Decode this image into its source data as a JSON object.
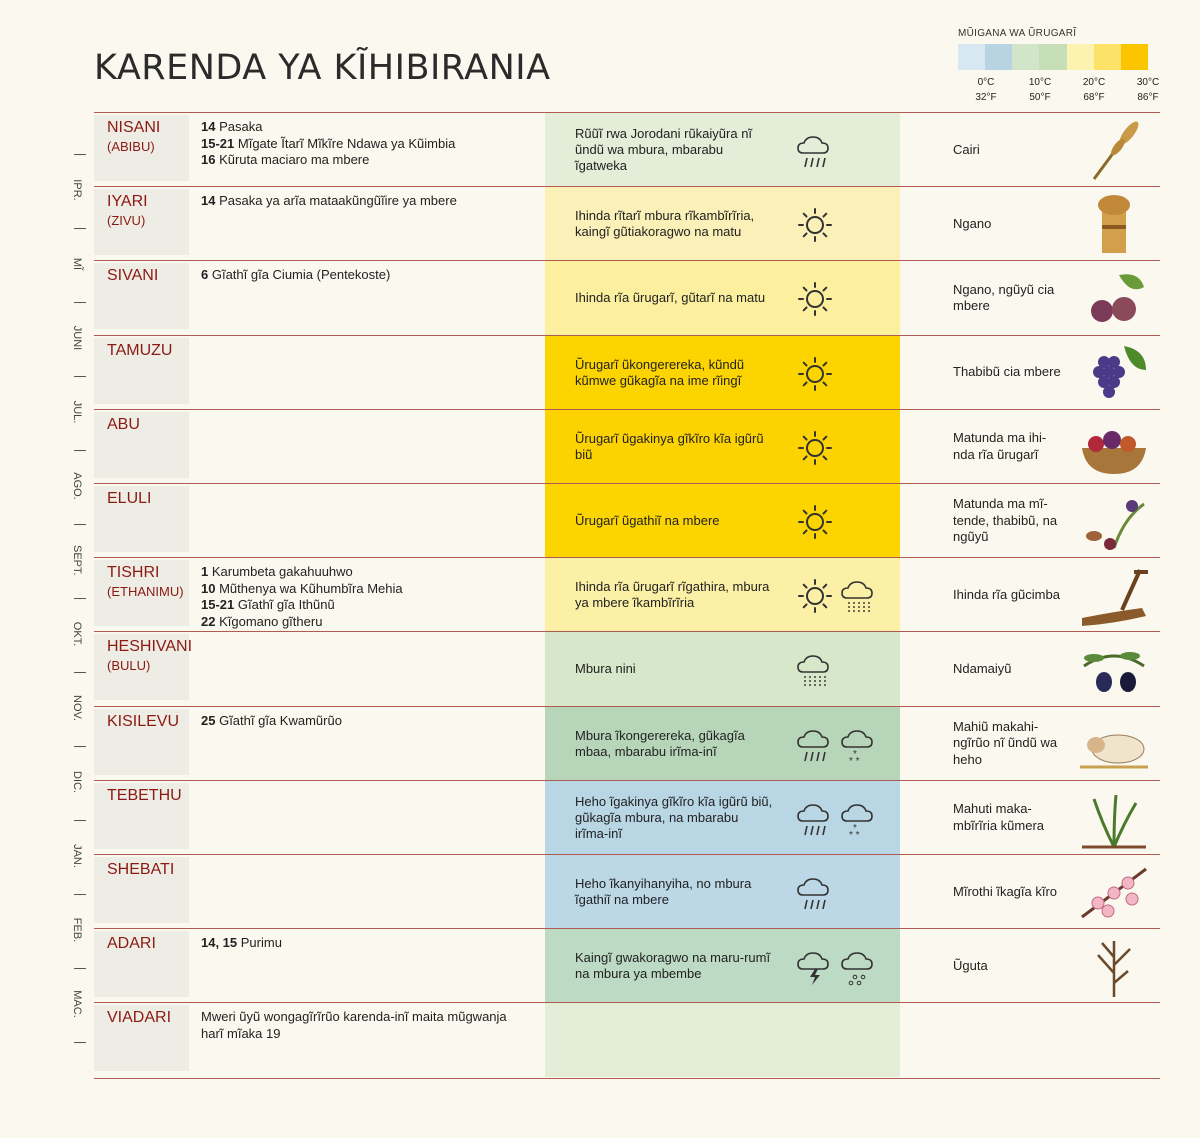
{
  "title": "KARENDA YA KĨHIBIRANIA",
  "legend": {
    "label": "MŨIGANA WA ŨRUGARĨ",
    "colors": [
      "#d8e8f2",
      "#b8d3e1",
      "#d1e6c8",
      "#c7dfb6",
      "#fdf3b0",
      "#fde269",
      "#fbc600"
    ],
    "ticks": [
      {
        "c": "0°C",
        "f": "32°F"
      },
      {
        "c": "10°C",
        "f": "50°F"
      },
      {
        "c": "20°C",
        "f": "68°F"
      },
      {
        "c": "30°C",
        "f": "86°F"
      }
    ]
  },
  "gregorian": [
    "IPR.",
    "MĨ",
    "JUNI",
    "JUL.",
    "AGO.",
    "SEPT.",
    "OKT.",
    "NOV.",
    "DIC.",
    "JAN.",
    "FEB.",
    "MAC."
  ],
  "months": [
    {
      "name": "NISANI",
      "alt": "(ABIBU)",
      "feasts": [
        {
          "d": "14",
          "t": "Pasaka"
        },
        {
          "d": "15-21",
          "t": "Mĩgate Ĩtarĩ Mĩkĩre Ndawa ya Kũimbia"
        },
        {
          "d": "16",
          "t": "Kũruta maciaro ma mbere"
        }
      ],
      "weather": "Rũũĩ rwa Jorodani rũkaiyũra nĩ ũndũ wa mbura, mbarabu ĩgatweka",
      "icons": [
        "rain-cloud"
      ],
      "bg": "#e3edd7",
      "crop": "Cairi",
      "crop_icon": "barley-icon"
    },
    {
      "name": "IYARI",
      "alt": "(ZIVU)",
      "feasts": [
        {
          "d": "14",
          "t": "Pasaka ya arĩa mataakũngũĩire ya mbere"
        }
      ],
      "weather": "Ihinda rĩtarĩ mbura rĩkambĩrĩria, kaingĩ gũtiakoragwo na matu",
      "icons": [
        "sun"
      ],
      "bg": "#fbf1b8",
      "crop": "Ngano",
      "crop_icon": "wheat-sheaf-icon"
    },
    {
      "name": "SIVANI",
      "alt": "",
      "feasts": [
        {
          "d": "6",
          "t": "Gĩathĩ gĩa Ciumia (Pentekoste)"
        }
      ],
      "weather": "Ihinda rĩa ũrugarĩ, gũtarĩ na matu",
      "icons": [
        "sun"
      ],
      "bg": "#fcef9e",
      "crop": "Ngano, ngũyũ cia mbere",
      "crop_icon": "fig-icon"
    },
    {
      "name": "TAMUZU",
      "alt": "",
      "feasts": [],
      "weather": "Ũrugarĩ ũkongerereka, kũndũ kũmwe gũkagĩa na ime rĩingĩ",
      "icons": [
        "sun"
      ],
      "bg": "#fcd500",
      "crop": "Thabibũ cia mbere",
      "crop_icon": "grapes-icon"
    },
    {
      "name": "ABU",
      "alt": "",
      "feasts": [],
      "weather": "Ũrugarĩ ũgakinya gĩkĩro kĩa igũrũ biũ",
      "icons": [
        "sun"
      ],
      "bg": "#fcd200",
      "crop": "Matunda ma ihi-nda rĩa ũrugarĩ",
      "crop_icon": "fruit-basket-icon"
    },
    {
      "name": "ELULI",
      "alt": "",
      "feasts": [],
      "weather": "Ũrugarĩ ũgathiĩ na mbere",
      "icons": [
        "sun"
      ],
      "bg": "#fcd500",
      "crop": "Matunda ma mĩ-tende, thabibũ, na ngũyũ",
      "crop_icon": "dates-icon"
    },
    {
      "name": "TISHRI",
      "alt": "(ETHANIMU)",
      "feasts": [
        {
          "d": "1",
          "t": "Karumbeta gakahuuhwo"
        },
        {
          "d": "10",
          "t": "Mũthenya wa Kũhumbĩra Mehia"
        },
        {
          "d": "15-21",
          "t": "Gĩathĩ gĩa Ithũnũ"
        },
        {
          "d": "22",
          "t": "Kĩgomano gĩtheru"
        }
      ],
      "weather": "Ihinda rĩa ũrugarĩ rĩgathira, mbura ya mbere ĩkambĩrĩria",
      "icons": [
        "sun",
        "drizzle-cloud"
      ],
      "bg": "#fcf0a6",
      "crop": "Ihinda rĩa gũcimba",
      "crop_icon": "plow-icon"
    },
    {
      "name": "HESHIVANI",
      "alt": "(BULU)",
      "feasts": [],
      "weather": "Mbura nini",
      "icons": [
        "drizzle-cloud"
      ],
      "bg": "#d6e8c9",
      "crop": "Ndamaiyũ",
      "crop_icon": "olives-icon"
    },
    {
      "name": "KISILEVU",
      "alt": "",
      "feasts": [
        {
          "d": "25",
          "t": "Gĩathĩ gĩa Kwamũrũo"
        }
      ],
      "weather": "Mbura ĩkongerereka, gũkagĩa mbaa, mbarabu irĩma-inĩ",
      "icons": [
        "rain-cloud",
        "snow-cloud"
      ],
      "bg": "#b7d6b9",
      "crop": "Mahiũ makahi-ngĩrũo nĩ ũndũ wa heho",
      "crop_icon": "sheep-icon"
    },
    {
      "name": "TEBETHU",
      "alt": "",
      "feasts": [],
      "weather": "Heho ĩgakinya gĩkĩro kĩa igũrũ biũ, gũkagĩa mbura, na mbarabu irĩma-inĩ",
      "icons": [
        "rain-cloud",
        "snow-cloud"
      ],
      "bg": "#b9d6e5",
      "crop": "Mahuti maka-mbĩrĩria kũmera",
      "crop_icon": "sprout-icon"
    },
    {
      "name": "SHEBATI",
      "alt": "",
      "feasts": [],
      "weather": "Heho ĩkanyihanyiha, no mbura ĩgathiĩ na mbere",
      "icons": [
        "rain-cloud"
      ],
      "bg": "#bcd8e6",
      "crop": "Mĩrothi ĩkagĩa kĩro",
      "crop_icon": "blossom-icon"
    },
    {
      "name": "ADARI",
      "alt": "",
      "feasts": [
        {
          "d": "14, 15",
          "t": "Purimu"
        }
      ],
      "weather": "Kaingĩ gwakoragwo na maru-rumĩ na mbura ya mbembe",
      "icons": [
        "storm-cloud",
        "hail-cloud"
      ],
      "bg": "#bcdac4",
      "crop": "Ũguta",
      "crop_icon": "flax-icon"
    },
    {
      "name": "VIADARI",
      "alt": "",
      "feasts": [
        {
          "d": "",
          "t": "Mweri ũyũ wongagĩrĩrũo karenda-inĩ maita mũgwanja harĩ mĩaka 19"
        }
      ],
      "weather": "",
      "icons": [],
      "bg": "#e3edd7",
      "crop": "",
      "crop_icon": ""
    }
  ]
}
